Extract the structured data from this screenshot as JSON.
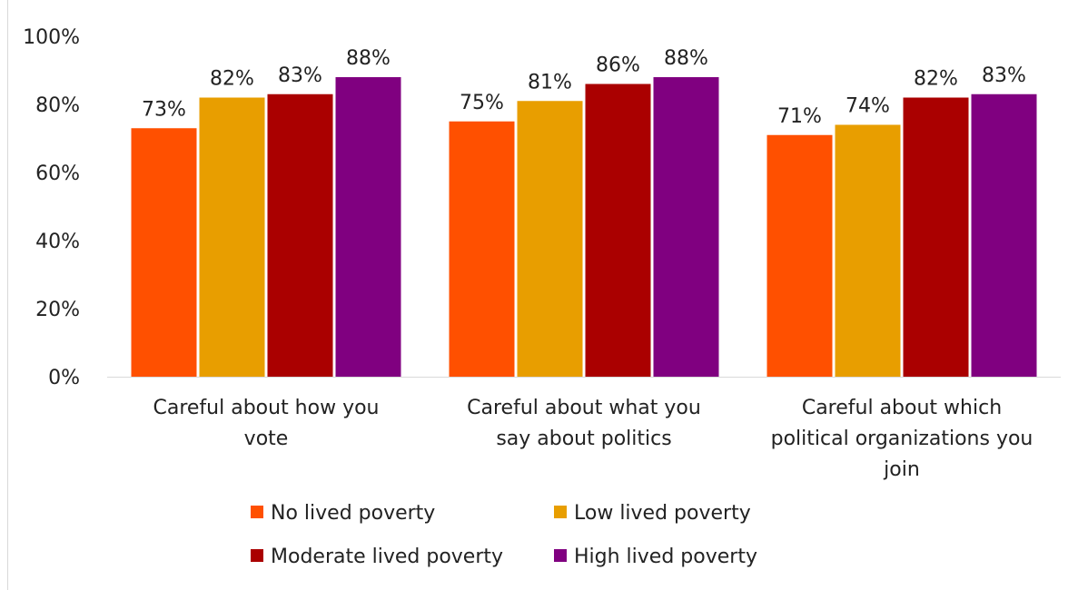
{
  "chart_data": {
    "type": "bar",
    "categories": [
      "Careful about how you vote",
      "Careful about what you say about politics",
      "Careful about which political organizations you join"
    ],
    "series": [
      {
        "name": "No lived poverty",
        "values": [
          73,
          75,
          71
        ],
        "labels": [
          "73%",
          "75%",
          "71%"
        ],
        "color": "#FF5000"
      },
      {
        "name": "Low lived poverty",
        "values": [
          82,
          81,
          74
        ],
        "labels": [
          "82%",
          "81%",
          "74%"
        ],
        "color": "#E89E00"
      },
      {
        "name": "Moderate lived poverty",
        "values": [
          83,
          86,
          82
        ],
        "labels": [
          "83%",
          "86%",
          "82%"
        ],
        "color": "#AA0000"
      },
      {
        "name": "High lived poverty",
        "values": [
          88,
          88,
          83
        ],
        "labels": [
          "88%",
          "88%",
          "83%"
        ],
        "color": "#800080"
      }
    ],
    "ylim": [
      0,
      100
    ],
    "yticks": [
      0,
      20,
      40,
      60,
      80,
      100
    ],
    "ytick_labels": [
      "0%",
      "20%",
      "40%",
      "60%",
      "80%",
      "100%"
    ],
    "category_label_lines": [
      [
        "Careful about how you",
        "vote"
      ],
      [
        "Careful about what you",
        "say about politics"
      ],
      [
        "Careful about which",
        "political organizations you",
        "join"
      ]
    ],
    "grid": false,
    "legend_position": "bottom"
  }
}
